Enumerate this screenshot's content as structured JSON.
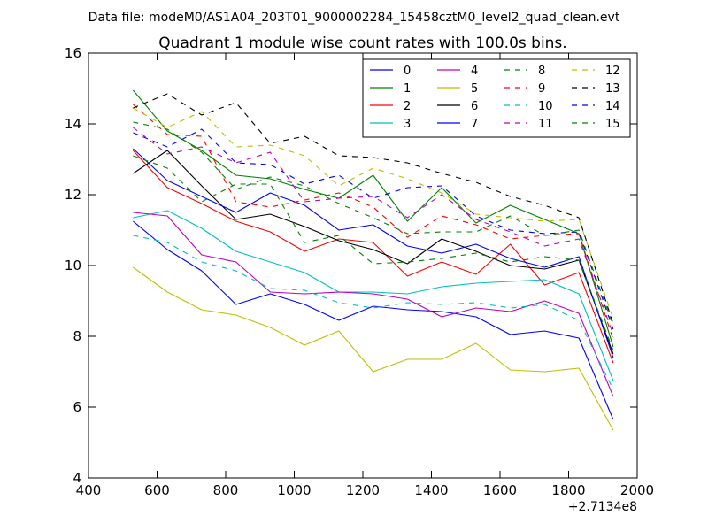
{
  "chart_data": {
    "type": "line",
    "header": "Data file: modeM0/AS1A04_203T01_9000002284_15458cztM0_level2_quad_clean.evt",
    "title": "Quadrant 1 module wise count rates with 100.0s bins.",
    "xlabel": "",
    "ylabel": "",
    "x_offset_label": "+2.7134e8",
    "xlim": [
      400,
      2000
    ],
    "ylim": [
      4,
      16
    ],
    "xticks": [
      400,
      600,
      800,
      1000,
      1200,
      1400,
      1600,
      1800,
      2000
    ],
    "yticks": [
      4,
      6,
      8,
      10,
      12,
      14,
      16
    ],
    "x": [
      530,
      630,
      730,
      830,
      930,
      1030,
      1130,
      1230,
      1330,
      1430,
      1530,
      1630,
      1730,
      1830,
      1930
    ],
    "legend_position": "top-right",
    "series": [
      {
        "name": "0",
        "color": "#0000ff",
        "style": "solid",
        "values": [
          11.25,
          10.45,
          9.85,
          8.9,
          9.2,
          8.9,
          8.45,
          8.85,
          8.75,
          8.7,
          8.55,
          8.05,
          8.15,
          7.95,
          5.65
        ]
      },
      {
        "name": "1",
        "color": "#008000",
        "style": "solid",
        "values": [
          14.95,
          13.8,
          13.25,
          12.55,
          12.45,
          12.15,
          11.9,
          12.55,
          11.25,
          12.2,
          11.2,
          11.7,
          11.3,
          10.9,
          7.7
        ]
      },
      {
        "name": "2",
        "color": "#ff0000",
        "style": "solid",
        "values": [
          13.25,
          12.2,
          11.75,
          11.25,
          10.95,
          10.4,
          10.75,
          10.65,
          9.7,
          10.1,
          9.75,
          10.6,
          9.45,
          9.8,
          7.25
        ]
      },
      {
        "name": "3",
        "color": "#00bfbf",
        "style": "solid",
        "values": [
          11.35,
          11.55,
          11.05,
          10.4,
          10.1,
          9.8,
          9.25,
          9.25,
          9.2,
          9.4,
          9.5,
          9.55,
          9.6,
          9.2,
          6.75
        ]
      },
      {
        "name": "4",
        "color": "#bf00bf",
        "style": "solid",
        "values": [
          11.5,
          11.4,
          10.3,
          10.1,
          9.25,
          9.2,
          9.25,
          9.2,
          9.05,
          8.55,
          8.8,
          8.7,
          9.0,
          8.65,
          6.3
        ]
      },
      {
        "name": "5",
        "color": "#bfbf00",
        "style": "solid",
        "values": [
          9.95,
          9.25,
          8.75,
          8.6,
          8.25,
          7.75,
          8.15,
          7.0,
          7.35,
          7.35,
          7.8,
          7.05,
          7.0,
          7.1,
          5.35
        ]
      },
      {
        "name": "6",
        "color": "#000000",
        "style": "solid",
        "values": [
          12.6,
          13.25,
          12.25,
          11.3,
          11.45,
          11.1,
          10.7,
          10.45,
          10.05,
          10.75,
          10.4,
          10.0,
          9.9,
          10.15,
          7.5
        ]
      },
      {
        "name": "7",
        "color": "#0000ff",
        "style": "solid",
        "values": [
          13.3,
          12.4,
          11.95,
          11.5,
          12.05,
          11.7,
          11.0,
          11.15,
          10.55,
          10.35,
          10.6,
          10.2,
          9.95,
          10.25,
          7.4
        ]
      },
      {
        "name": "8",
        "color": "#008000",
        "style": "dashed",
        "values": [
          13.1,
          12.75,
          11.8,
          12.3,
          12.3,
          10.65,
          10.85,
          10.05,
          10.1,
          10.2,
          10.35,
          10.1,
          10.25,
          10.15,
          7.6
        ]
      },
      {
        "name": "9",
        "color": "#ff0000",
        "style": "dashed",
        "values": [
          14.55,
          13.7,
          13.65,
          11.8,
          11.65,
          11.85,
          12.05,
          11.65,
          10.8,
          11.4,
          11.15,
          10.75,
          10.85,
          10.9,
          7.9
        ]
      },
      {
        "name": "10",
        "color": "#00bfbf",
        "style": "dashed",
        "values": [
          10.85,
          10.65,
          10.1,
          9.85,
          9.35,
          9.3,
          8.95,
          8.8,
          8.95,
          8.9,
          8.95,
          8.8,
          8.9,
          8.45,
          6.5
        ]
      },
      {
        "name": "11",
        "color": "#bf00bf",
        "style": "dashed",
        "values": [
          13.9,
          13.15,
          13.35,
          12.9,
          13.2,
          11.8,
          11.9,
          11.95,
          11.35,
          12.0,
          11.3,
          10.95,
          10.55,
          10.75,
          8.05
        ]
      },
      {
        "name": "12",
        "color": "#bfbf00",
        "style": "dashed",
        "values": [
          14.45,
          13.9,
          14.35,
          13.35,
          13.4,
          13.1,
          12.25,
          12.75,
          12.45,
          12.05,
          11.45,
          11.35,
          11.25,
          11.3,
          8.5
        ]
      },
      {
        "name": "13",
        "color": "#000000",
        "style": "dashed",
        "values": [
          14.45,
          14.85,
          14.25,
          14.6,
          13.45,
          13.65,
          13.1,
          13.05,
          12.9,
          12.6,
          12.35,
          11.95,
          11.7,
          11.35,
          8.35
        ]
      },
      {
        "name": "14",
        "color": "#0000ff",
        "style": "dashed",
        "values": [
          13.75,
          13.35,
          13.85,
          12.9,
          12.85,
          12.3,
          12.55,
          11.9,
          12.2,
          12.25,
          11.4,
          11.0,
          10.9,
          10.95,
          8.2
        ]
      },
      {
        "name": "15",
        "color": "#008000",
        "style": "dashed",
        "values": [
          14.05,
          13.85,
          13.2,
          12.15,
          12.5,
          12.25,
          11.75,
          11.35,
          10.9,
          10.95,
          10.95,
          11.4,
          10.85,
          11.0,
          8.3
        ]
      }
    ]
  }
}
